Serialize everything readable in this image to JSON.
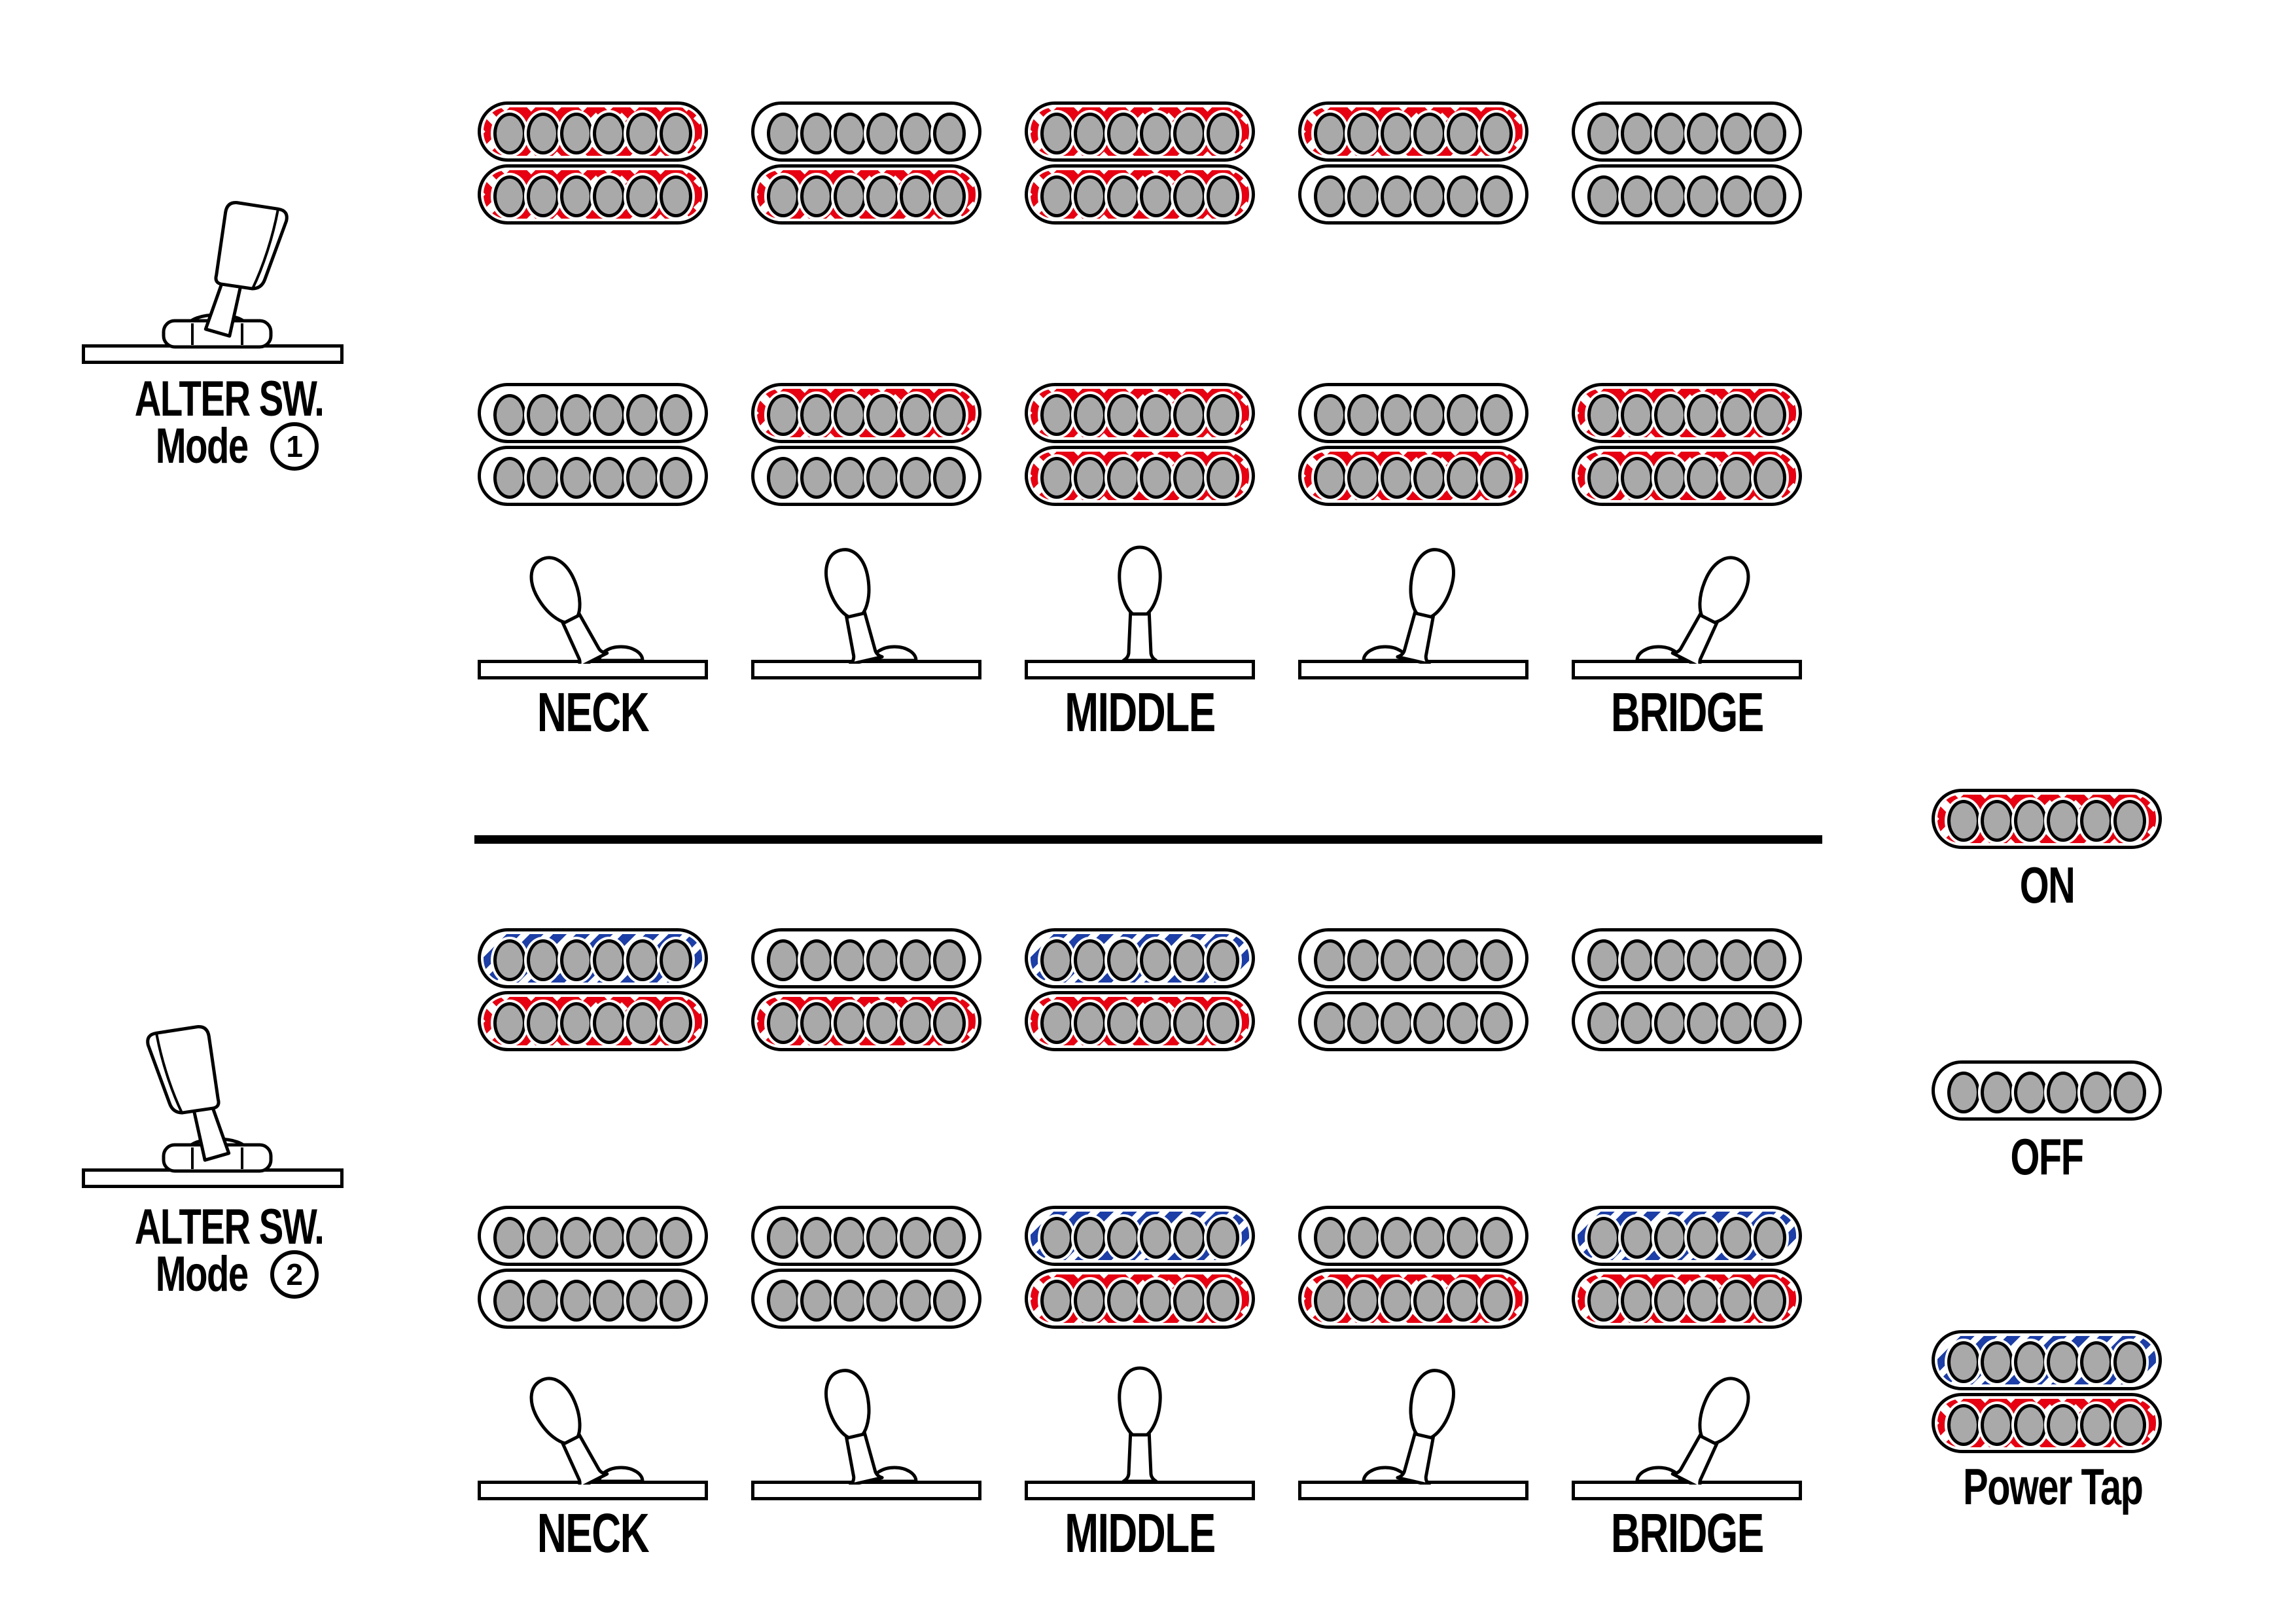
{
  "colors": {
    "on": "#e60012",
    "tap": "#1c3ea6",
    "pole": "#a9a9a9",
    "line": "#000000"
  },
  "modes": [
    {
      "title": "ALTER SW.",
      "subtitle": "Mode",
      "number": "1",
      "switch_tilt": "right",
      "position_labels": [
        {
          "col": 0,
          "text": "NECK"
        },
        {
          "col": 2,
          "text": "MIDDLE"
        },
        {
          "col": 4,
          "text": "BRIDGE"
        }
      ],
      "lever_angles": [
        -27,
        -13,
        0,
        13,
        27
      ],
      "rows": [
        {
          "name": "neck-pickup-row",
          "pickups": [
            [
              "on",
              "on"
            ],
            [
              "off",
              "on"
            ],
            [
              "on",
              "on"
            ],
            [
              "on",
              "off"
            ],
            [
              "off",
              "off"
            ]
          ]
        },
        {
          "name": "bridge-pickup-row",
          "pickups": [
            [
              "off",
              "off"
            ],
            [
              "on",
              "off"
            ],
            [
              "on",
              "on"
            ],
            [
              "off",
              "on"
            ],
            [
              "on",
              "on"
            ]
          ]
        }
      ]
    },
    {
      "title": "ALTER SW.",
      "subtitle": "Mode",
      "number": "2",
      "switch_tilt": "left",
      "position_labels": [
        {
          "col": 0,
          "text": "NECK"
        },
        {
          "col": 2,
          "text": "MIDDLE"
        },
        {
          "col": 4,
          "text": "BRIDGE"
        }
      ],
      "lever_angles": [
        -27,
        -13,
        0,
        13,
        27
      ],
      "rows": [
        {
          "name": "neck-pickup-row",
          "pickups": [
            [
              "tap",
              "on"
            ],
            [
              "off",
              "on"
            ],
            [
              "tap",
              "on"
            ],
            [
              "off",
              "off"
            ],
            [
              "off",
              "off"
            ]
          ]
        },
        {
          "name": "bridge-pickup-row",
          "pickups": [
            [
              "off",
              "off"
            ],
            [
              "off",
              "off"
            ],
            [
              "tap",
              "on"
            ],
            [
              "off",
              "on"
            ],
            [
              "tap",
              "on"
            ]
          ]
        }
      ]
    }
  ],
  "legend_items": [
    {
      "states": [
        "on"
      ],
      "label": "ON"
    },
    {
      "states": [
        "off"
      ],
      "label": "OFF"
    },
    {
      "states": [
        "tap",
        "on"
      ],
      "label": "Power Tap"
    }
  ]
}
